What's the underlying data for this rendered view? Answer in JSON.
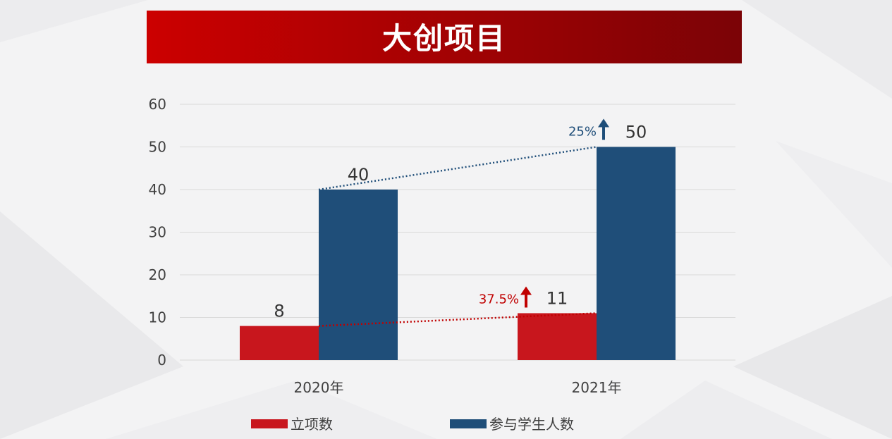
{
  "title": "大创项目",
  "colors": {
    "banner_left": "#cc0000",
    "banner_right": "#7b0306",
    "series_red": "#c8161d",
    "series_blue": "#1f4e79",
    "arrow_red": "#c00000",
    "arrow_blue": "#1f4e79",
    "grid": "#d9d9d9",
    "text": "#404040"
  },
  "chart_data": {
    "type": "bar",
    "categories": [
      "2020年",
      "2021年"
    ],
    "series": [
      {
        "name": "立项数",
        "values": [
          8,
          11
        ]
      },
      {
        "name": "参与学生人数",
        "values": [
          40,
          50
        ]
      }
    ],
    "ylim": [
      0,
      60
    ],
    "yticks": [
      0,
      10,
      20,
      30,
      40,
      50,
      60
    ],
    "grid": true,
    "legend_position": "bottom",
    "data_labels": [
      "8",
      "40",
      "11",
      "50"
    ],
    "growth_annotations": [
      {
        "series": "立项数",
        "label": "37.5%"
      },
      {
        "series": "参与学生人数",
        "label": "25%"
      }
    ]
  }
}
